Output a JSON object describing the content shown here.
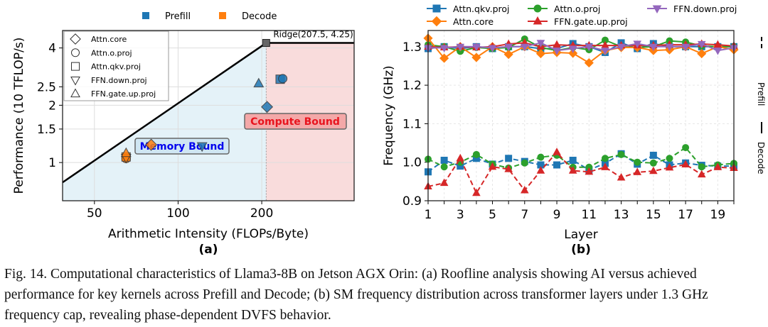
{
  "chart_data": [
    {
      "type": "scatter",
      "panel_label": "(a)",
      "title": "",
      "xlabel": "Arithmetic Intensity (FLOPs/Byte)",
      "ylabel": "Performance (10 TFLOP/s)",
      "xscale": "log",
      "yscale": "log",
      "xlim": [
        38.4,
        430
      ],
      "ylim": [
        0.63,
        4.94
      ],
      "xticks": [
        50,
        100,
        200
      ],
      "yticks": [
        1,
        1.5,
        2,
        2.5,
        4
      ],
      "grid": true,
      "phase_legend": [
        {
          "name": "Prefill",
          "color": "#1f77b4"
        },
        {
          "name": "Decode",
          "color": "#ff7f0e"
        }
      ],
      "marker_legend": [
        {
          "name": "Attn.core",
          "marker": "diamond"
        },
        {
          "name": "Attn.o.proj",
          "marker": "circle"
        },
        {
          "name": "Attn.qkv.proj",
          "marker": "square"
        },
        {
          "name": "FFN.down.proj",
          "marker": "triangle-down"
        },
        {
          "name": "FFN.gate.up.proj",
          "marker": "triangle-up"
        }
      ],
      "roofline": {
        "ridge": [
          207.5,
          4.25
        ],
        "ridge_label": "Ridge(207.5, 4.25)"
      },
      "regions": [
        {
          "label": "Memory Bound",
          "color": "#0000ee",
          "at": [
            95,
            1.23
          ]
        },
        {
          "label": "Compute Bound",
          "color": "#e8141e",
          "at": [
            290,
            1.62
          ]
        }
      ],
      "points": [
        {
          "kernel": "Attn.core",
          "phase": "Prefill",
          "x": 209,
          "y": 1.96
        },
        {
          "kernel": "Attn.qkv.proj",
          "phase": "Prefill",
          "x": 233,
          "y": 2.74
        },
        {
          "kernel": "Attn.o.proj",
          "phase": "Prefill",
          "x": 238,
          "y": 2.76
        },
        {
          "kernel": "FFN.gate.up.proj",
          "phase": "Prefill",
          "x": 195,
          "y": 2.6
        },
        {
          "kernel": "FFN.down.proj",
          "phase": "Prefill",
          "x": 122,
          "y": 1.22
        },
        {
          "kernel": "Attn.core",
          "phase": "Decode",
          "x": 80,
          "y": 1.24
        },
        {
          "kernel": "Attn.o.proj",
          "phase": "Decode",
          "x": 65,
          "y": 1.05
        },
        {
          "kernel": "Attn.qkv.proj",
          "phase": "Decode",
          "x": 65,
          "y": 1.07
        },
        {
          "kernel": "FFN.down.proj",
          "phase": "Decode",
          "x": 65,
          "y": 1.06
        },
        {
          "kernel": "FFN.gate.up.proj",
          "phase": "Decode",
          "x": 65,
          "y": 1.12
        }
      ]
    },
    {
      "type": "line",
      "panel_label": "(b)",
      "xlabel": "Layer",
      "ylabel": "Frequency (GHz)",
      "xlim": [
        1,
        20
      ],
      "ylim": [
        0.9,
        1.342
      ],
      "xticks": [
        1,
        3,
        5,
        7,
        9,
        11,
        13,
        15,
        17,
        19
      ],
      "yticks": [
        0.9,
        1.0,
        1.1,
        1.2,
        1.3
      ],
      "ytick_labels": [
        "0.9",
        "1.0",
        "1.1",
        "1.2",
        "1.3"
      ],
      "grid": true,
      "side_legend": [
        {
          "label": "Prefill",
          "style": "dashed"
        },
        {
          "label": "Decode",
          "style": "solid"
        }
      ],
      "x": [
        1,
        2,
        3,
        4,
        5,
        6,
        7,
        8,
        9,
        10,
        11,
        12,
        13,
        14,
        15,
        16,
        17,
        18,
        19,
        20
      ],
      "series": [
        {
          "name": "Attn.qkv.proj",
          "color": "#1f77b4",
          "marker": "square",
          "phase": "Prefill",
          "values": [
            1.295,
            1.3,
            1.295,
            1.3,
            1.295,
            1.3,
            1.3,
            1.295,
            1.295,
            1.308,
            1.3,
            1.285,
            1.31,
            1.295,
            1.308,
            1.3,
            1.3,
            1.3,
            1.3,
            1.3
          ]
        },
        {
          "name": "Attn.o.proj",
          "color": "#2ca02c",
          "marker": "circle",
          "phase": "Prefill",
          "values": [
            1.305,
            1.3,
            1.288,
            1.298,
            1.295,
            1.298,
            1.32,
            1.298,
            1.29,
            1.298,
            1.292,
            1.317,
            1.3,
            1.298,
            1.3,
            1.315,
            1.312,
            1.302,
            1.3,
            1.3
          ]
        },
        {
          "name": "Attn.core",
          "color": "#ff7f0e",
          "marker": "diamond",
          "phase": "Prefill",
          "values": [
            1.322,
            1.27,
            1.3,
            1.272,
            1.3,
            1.28,
            1.3,
            1.282,
            1.285,
            1.283,
            1.258,
            1.29,
            1.298,
            1.298,
            1.29,
            1.292,
            1.3,
            1.282,
            1.3,
            1.292
          ]
        },
        {
          "name": "FFN.gate.up.proj",
          "color": "#d62728",
          "marker": "triangle-up",
          "phase": "Prefill",
          "values": [
            1.3,
            1.298,
            1.3,
            1.298,
            1.3,
            1.307,
            1.31,
            1.3,
            1.305,
            1.303,
            1.303,
            1.303,
            1.303,
            1.303,
            1.303,
            1.305,
            1.305,
            1.307,
            1.305,
            1.302
          ]
        },
        {
          "name": "FFN.down.proj",
          "color": "#9467bd",
          "marker": "triangle-down",
          "phase": "Prefill",
          "values": [
            1.297,
            1.297,
            1.3,
            1.3,
            1.297,
            1.3,
            1.3,
            1.31,
            1.29,
            1.295,
            1.3,
            1.29,
            1.3,
            1.308,
            1.3,
            1.3,
            1.3,
            1.307,
            1.29,
            1.297
          ]
        },
        {
          "name": "Attn.qkv.proj",
          "color": "#1f77b4",
          "marker": "square",
          "phase": "Decode",
          "values": [
            0.975,
            1.005,
            0.99,
            1.01,
            0.995,
            1.01,
            1.002,
            0.993,
            0.993,
            1.005,
            0.98,
            0.997,
            1.022,
            0.995,
            1.018,
            0.993,
            0.998,
            0.992,
            0.99,
            0.99
          ]
        },
        {
          "name": "Attn.o.proj",
          "color": "#2ca02c",
          "marker": "circle",
          "phase": "Decode",
          "values": [
            1.008,
            0.988,
            1.0,
            1.02,
            0.995,
            0.985,
            0.998,
            1.013,
            1.018,
            0.987,
            0.987,
            1.01,
            1.02,
            1.0,
            0.998,
            1.01,
            1.038,
            0.988,
            0.993,
            0.997
          ]
        },
        {
          "name": "FFN.gate.up.proj",
          "color": "#d62728",
          "marker": "triangle-up",
          "phase": "Decode",
          "values": [
            0.937,
            0.946,
            1.01,
            0.92,
            0.988,
            0.982,
            0.927,
            0.978,
            1.026,
            0.978,
            0.975,
            0.987,
            0.96,
            0.974,
            0.977,
            0.986,
            0.994,
            0.968,
            0.987,
            0.985
          ]
        }
      ],
      "legend_order": [
        "Attn.qkv.proj",
        "Attn.o.proj",
        "FFN.down.proj",
        "Attn.core",
        "FFN.gate.up.proj"
      ]
    }
  ],
  "caption": "Fig. 14.  Computational characteristics of Llama3-8B on Jetson AGX Orin: (a) Roofline analysis showing AI versus achieved performance for key kernels across Prefill and Decode; (b) SM frequency distribution across transformer layers under 1.3 GHz frequency cap, revealing phase-dependent DVFS behavior."
}
